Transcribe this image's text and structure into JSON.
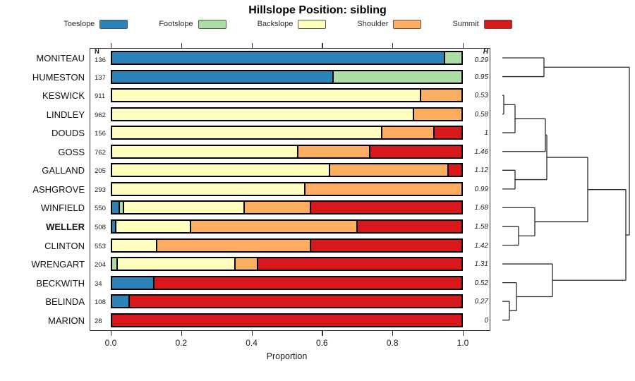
{
  "title": "Hillslope Position: sibling",
  "chart_data": {
    "type": "bar",
    "variant": "horizontal-stacked-proportion-with-dendrogram",
    "title": "Hillslope Position: sibling",
    "xlabel": "Proportion",
    "xlim": [
      0,
      1
    ],
    "x_ticks": [
      "0.0",
      "0.2",
      "0.4",
      "0.6",
      "0.8",
      "1.0"
    ],
    "grid": false,
    "legend_position": "top",
    "n_header": "N",
    "h_header": "H",
    "categories": [
      "Toeslope",
      "Footslope",
      "Backslope",
      "Shoulder",
      "Summit"
    ],
    "colors": {
      "Toeslope": "#2B83BA",
      "Footslope": "#ABDDA4",
      "Backslope": "#FFFFBF",
      "Shoulder": "#FDAE61",
      "Summit": "#D7191C"
    },
    "rows": [
      {
        "name": "MONITEAU",
        "n": "136",
        "H": "0.29",
        "bold": false,
        "segments": [
          {
            "category": "Toeslope",
            "p": 0.95
          },
          {
            "category": "Footslope",
            "p": 0.05
          }
        ]
      },
      {
        "name": "HUMESTON",
        "n": "137",
        "H": "0.95",
        "bold": false,
        "segments": [
          {
            "category": "Toeslope",
            "p": 0.63
          },
          {
            "category": "Footslope",
            "p": 0.37
          }
        ]
      },
      {
        "name": "KESWICK",
        "n": "911",
        "H": "0.53",
        "bold": false,
        "segments": [
          {
            "category": "Backslope",
            "p": 0.88
          },
          {
            "category": "Shoulder",
            "p": 0.12
          }
        ]
      },
      {
        "name": "LINDLEY",
        "n": "962",
        "H": "0.58",
        "bold": false,
        "segments": [
          {
            "category": "Backslope",
            "p": 0.86
          },
          {
            "category": "Shoulder",
            "p": 0.14
          }
        ]
      },
      {
        "name": "DOUDS",
        "n": "156",
        "H": "1",
        "bold": false,
        "segments": [
          {
            "category": "Backslope",
            "p": 0.77
          },
          {
            "category": "Shoulder",
            "p": 0.15
          },
          {
            "category": "Summit",
            "p": 0.08
          }
        ]
      },
      {
        "name": "GOSS",
        "n": "762",
        "H": "1.46",
        "bold": false,
        "segments": [
          {
            "category": "Backslope",
            "p": 0.53
          },
          {
            "category": "Shoulder",
            "p": 0.205
          },
          {
            "category": "Summit",
            "p": 0.265
          }
        ]
      },
      {
        "name": "GALLAND",
        "n": "205",
        "H": "1.12",
        "bold": false,
        "segments": [
          {
            "category": "Backslope",
            "p": 0.62
          },
          {
            "category": "Shoulder",
            "p": 0.34
          },
          {
            "category": "Summit",
            "p": 0.04
          }
        ]
      },
      {
        "name": "ASHGROVE",
        "n": "293",
        "H": "0.99",
        "bold": false,
        "segments": [
          {
            "category": "Backslope",
            "p": 0.55
          },
          {
            "category": "Shoulder",
            "p": 0.45
          }
        ]
      },
      {
        "name": "WINFIELD",
        "n": "550",
        "H": "1.68",
        "bold": false,
        "segments": [
          {
            "category": "Toeslope",
            "p": 0.018
          },
          {
            "category": "Footslope",
            "p": 0.013
          },
          {
            "category": "Backslope",
            "p": 0.345
          },
          {
            "category": "Shoulder",
            "p": 0.19
          },
          {
            "category": "Summit",
            "p": 0.434
          }
        ]
      },
      {
        "name": "WELLER",
        "n": "508",
        "H": "1.58",
        "bold": true,
        "segments": [
          {
            "category": "Toeslope",
            "p": 0.008
          },
          {
            "category": "Backslope",
            "p": 0.215
          },
          {
            "category": "Shoulder",
            "p": 0.475
          },
          {
            "category": "Summit",
            "p": 0.302
          }
        ]
      },
      {
        "name": "CLINTON",
        "n": "553",
        "H": "1.42",
        "bold": false,
        "segments": [
          {
            "category": "Backslope",
            "p": 0.125
          },
          {
            "category": "Shoulder",
            "p": 0.44
          },
          {
            "category": "Summit",
            "p": 0.435
          }
        ]
      },
      {
        "name": "WRENGART",
        "n": "204",
        "H": "1.31",
        "bold": false,
        "segments": [
          {
            "category": "Footslope",
            "p": 0.012
          },
          {
            "category": "Backslope",
            "p": 0.338
          },
          {
            "category": "Shoulder",
            "p": 0.065
          },
          {
            "category": "Summit",
            "p": 0.585
          }
        ]
      },
      {
        "name": "BECKWITH",
        "n": "34",
        "H": "0.52",
        "bold": false,
        "segments": [
          {
            "category": "Toeslope",
            "p": 0.118
          },
          {
            "category": "Summit",
            "p": 0.882
          }
        ]
      },
      {
        "name": "BELINDA",
        "n": "108",
        "H": "0.27",
        "bold": false,
        "segments": [
          {
            "category": "Toeslope",
            "p": 0.046
          },
          {
            "category": "Summit",
            "p": 0.954
          }
        ]
      },
      {
        "name": "MARION",
        "n": "28",
        "H": "0",
        "bold": false,
        "segments": [
          {
            "category": "Summit",
            "p": 1.0
          }
        ]
      }
    ],
    "dendrogram": {
      "h": 180,
      "children": [
        {
          "h": 59,
          "children": [
            "MONITEAU",
            "HUMESTON"
          ]
        },
        {
          "h": 175,
          "children": [
            {
              "h": 121,
              "children": [
                {
                  "h": 63,
                  "children": [
                    {
                      "h": 61,
                      "children": [
                        {
                          "h": 18,
                          "children": [
                            {
                              "h": 2,
                              "children": [
                                "KESWICK",
                                "LINDLEY"
                              ]
                            },
                            "DOUDS"
                          ]
                        },
                        "GOSS"
                      ]
                    },
                    {
                      "h": 18,
                      "children": [
                        "GALLAND",
                        "ASHGROVE"
                      ]
                    }
                  ]
                },
                {
                  "h": 46,
                  "children": [
                    "WINFIELD",
                    {
                      "h": 23,
                      "children": [
                        "WELLER",
                        "CLINTON"
                      ]
                    }
                  ]
                }
              ]
            },
            {
              "h": 71,
              "children": [
                "WRENGART",
                {
                  "h": 20,
                  "children": [
                    "BECKWITH",
                    {
                      "h": 10,
                      "children": [
                        "BELINDA",
                        "MARION"
                      ]
                    }
                  ]
                }
              ]
            }
          ]
        }
      ]
    }
  }
}
